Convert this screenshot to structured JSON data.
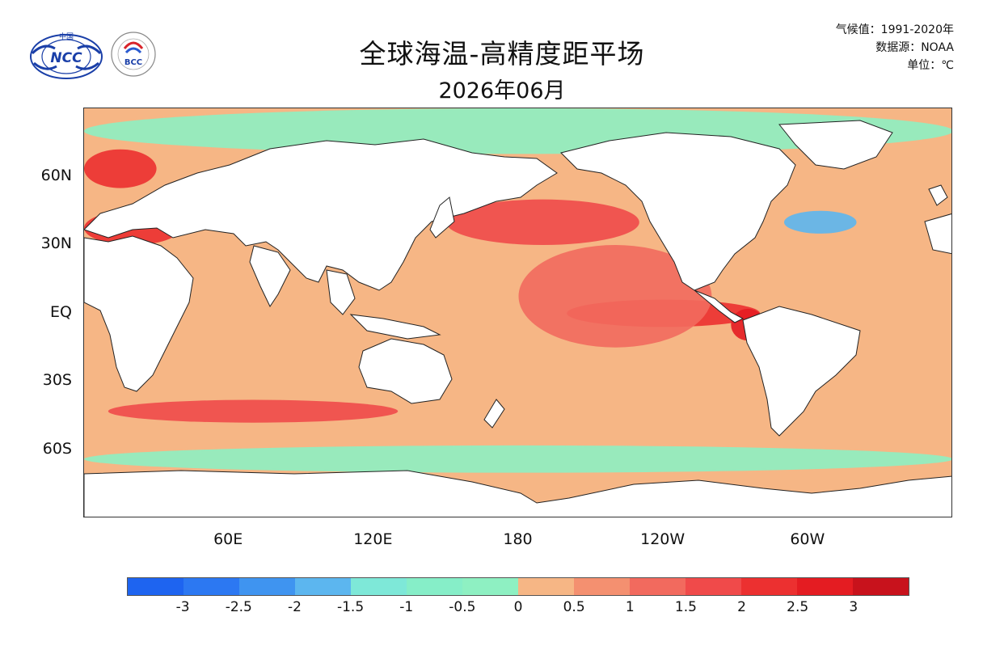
{
  "header": {
    "title": "全球海温-高精度距平场",
    "subtitle": "2026年06月",
    "climatology": "气候值：1991-2020年",
    "source": "数据源：NOAA",
    "unit": "单位：℃"
  },
  "logos": [
    {
      "name": "ncc-logo",
      "text": "NCC",
      "small_text": "中国"
    },
    {
      "name": "bcc-logo",
      "text": "BCC",
      "small_text": "国家气候中心"
    }
  ],
  "map": {
    "projection": "equirectangular",
    "lon_range": [
      0,
      360
    ],
    "lat_range": [
      -90,
      90
    ],
    "lat_ticks": [
      {
        "label": "60N",
        "lat": 60
      },
      {
        "label": "30N",
        "lat": 30
      },
      {
        "label": "EQ",
        "lat": 0
      },
      {
        "label": "30S",
        "lat": -30
      },
      {
        "label": "60S",
        "lat": -60
      }
    ],
    "lon_ticks": [
      {
        "label": "60E",
        "lon": 60
      },
      {
        "label": "120E",
        "lon": 120
      },
      {
        "label": "180",
        "lon": 180
      },
      {
        "label": "120W",
        "lon": 240
      },
      {
        "label": "60W",
        "lon": 300
      }
    ],
    "background_anomaly_class": "0 to 0.5",
    "anomaly_regions": [
      {
        "name": "equatorial-pacific-warm",
        "class": "2 to 2.5",
        "lon": [
          200,
          280
        ],
        "lat": [
          -6,
          6
        ]
      },
      {
        "name": "peru-coast-warm",
        "class": "2.5 to 3",
        "lon": [
          268,
          282
        ],
        "lat": [
          -12,
          2
        ]
      },
      {
        "name": "north-pacific-warm",
        "class": "1.5 to 2",
        "lon": [
          150,
          230
        ],
        "lat": [
          30,
          50
        ]
      },
      {
        "name": "central-pacific-warm",
        "class": "1 to 1.5",
        "lon": [
          180,
          260
        ],
        "lat": [
          -15,
          30
        ]
      },
      {
        "name": "arctic-cool",
        "class": "-0.5 to 0",
        "lon": [
          0,
          360
        ],
        "lat": [
          70,
          90
        ]
      },
      {
        "name": "southern-ocean-cool",
        "class": "-0.5 to 0",
        "lon": [
          0,
          360
        ],
        "lat": [
          -70,
          -58
        ]
      },
      {
        "name": "gulf-stream-cold",
        "class": "-2 to -1.5",
        "lon": [
          290,
          320
        ],
        "lat": [
          35,
          45
        ]
      },
      {
        "name": "southern-ocean-warm-band",
        "class": "1.5 to 2",
        "lon": [
          10,
          130
        ],
        "lat": [
          -48,
          -38
        ]
      },
      {
        "name": "mediterranean-warm",
        "class": "2 to 2.5",
        "lon": [
          0,
          40
        ],
        "lat": [
          30,
          45
        ]
      },
      {
        "name": "north-sea-warm",
        "class": "2 to 2.5",
        "lon": [
          0,
          30
        ],
        "lat": [
          55,
          72
        ]
      }
    ]
  },
  "colorbar": {
    "swatches": [
      "#1e64f0",
      "#2c78f2",
      "#3f94f0",
      "#5cb6ef",
      "#7ee8d8",
      "#86eec8",
      "#8ef0c2",
      "#f6b685",
      "#f49070",
      "#f26a5e",
      "#f04a4a",
      "#ec3030",
      "#e41c22",
      "#c8121c"
    ],
    "labels": [
      "-3",
      "-2.5",
      "-2",
      "-1.5",
      "-1",
      "-0.5",
      "0",
      "0.5",
      "1",
      "1.5",
      "2",
      "2.5",
      "3"
    ]
  },
  "chart_data": {
    "type": "heatmap",
    "title": "全球海温-高精度距平场",
    "subtitle": "2026年06月",
    "unit": "℃",
    "levels": [
      -3,
      -2.5,
      -2,
      -1.5,
      -1,
      -0.5,
      0,
      0.5,
      1,
      1.5,
      2,
      2.5,
      3
    ],
    "x_ticks": [
      "60E",
      "120E",
      "180",
      "120W",
      "60W"
    ],
    "y_ticks": [
      "60N",
      "30N",
      "EQ",
      "30S",
      "60S"
    ],
    "xlim": [
      0,
      360
    ],
    "ylim": [
      -90,
      90
    ]
  }
}
